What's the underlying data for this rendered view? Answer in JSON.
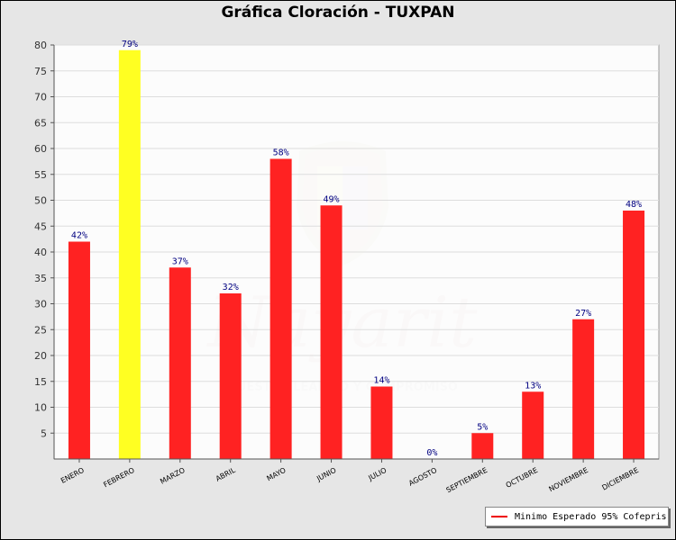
{
  "title": "Gráfica Cloración - TUXPAN",
  "chart_data": {
    "type": "bar",
    "title": "Gráfica Cloración - TUXPAN",
    "categories": [
      "ENERO",
      "FEBRERO",
      "MARZO",
      "ABRIL",
      "MAYO",
      "JUNIO",
      "JULIO",
      "AGOSTO",
      "SEPTIEMBRE",
      "OCTUBRE",
      "NOVIEMBRE",
      "DICIEMBRE"
    ],
    "values": [
      42,
      79,
      37,
      32,
      58,
      49,
      14,
      0,
      5,
      13,
      27,
      48
    ],
    "data_labels": [
      "42%",
      "79%",
      "37%",
      "32%",
      "58%",
      "49%",
      "14%",
      "0%",
      "5%",
      "13%",
      "27%",
      "48%"
    ],
    "bar_colors": [
      "#ff2222",
      "#ffff22",
      "#ff2222",
      "#ff2222",
      "#ff2222",
      "#ff2222",
      "#ff2222",
      "#ff2222",
      "#ff2222",
      "#ff2222",
      "#ff2222",
      "#ff2222"
    ],
    "yticks": [
      5,
      10,
      15,
      20,
      25,
      30,
      35,
      40,
      45,
      50,
      55,
      60,
      65,
      70,
      75,
      80
    ],
    "ylim": [
      0,
      80
    ],
    "grid": true,
    "legend": {
      "label": "Minimo Esperado 95% Cofepris",
      "color": "#ee0000",
      "position": "bottom-right"
    },
    "watermark": {
      "logo": "nayarit-coat-of-arms",
      "text": "Nayarit",
      "tagline": "NUESTRA LEALTAD Y COMPROMISO"
    }
  }
}
